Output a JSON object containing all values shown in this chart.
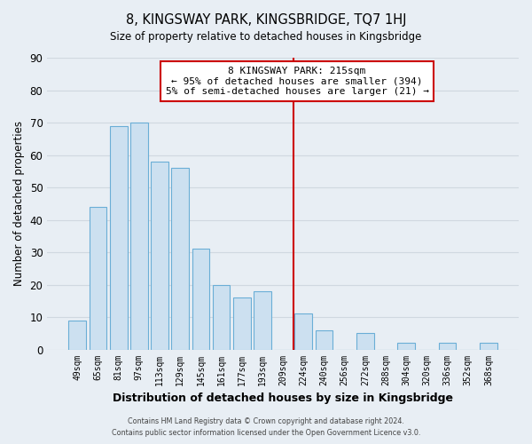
{
  "title": "8, KINGSWAY PARK, KINGSBRIDGE, TQ7 1HJ",
  "subtitle": "Size of property relative to detached houses in Kingsbridge",
  "xlabel": "Distribution of detached houses by size in Kingsbridge",
  "ylabel": "Number of detached properties",
  "bar_labels": [
    "49sqm",
    "65sqm",
    "81sqm",
    "97sqm",
    "113sqm",
    "129sqm",
    "145sqm",
    "161sqm",
    "177sqm",
    "193sqm",
    "209sqm",
    "224sqm",
    "240sqm",
    "256sqm",
    "272sqm",
    "288sqm",
    "304sqm",
    "320sqm",
    "336sqm",
    "352sqm",
    "368sqm"
  ],
  "bar_values": [
    9,
    44,
    69,
    70,
    58,
    56,
    31,
    20,
    16,
    18,
    0,
    11,
    6,
    0,
    5,
    0,
    2,
    0,
    2,
    0,
    2
  ],
  "bar_color": "#cce0f0",
  "bar_edge_color": "#6aaed6",
  "vline_x": 10.5,
  "vline_color": "#cc0000",
  "ylim": [
    0,
    90
  ],
  "yticks": [
    0,
    10,
    20,
    30,
    40,
    50,
    60,
    70,
    80,
    90
  ],
  "annotation_title": "8 KINGSWAY PARK: 215sqm",
  "annotation_line1": "← 95% of detached houses are smaller (394)",
  "annotation_line2": "5% of semi-detached houses are larger (21) →",
  "annotation_box_color": "#ffffff",
  "annotation_box_edge": "#cc0000",
  "footer_line1": "Contains HM Land Registry data © Crown copyright and database right 2024.",
  "footer_line2": "Contains public sector information licensed under the Open Government Licence v3.0.",
  "background_color": "#e8eef4",
  "plot_bg_color": "#e8eef4",
  "grid_color": "#d0d8e0"
}
